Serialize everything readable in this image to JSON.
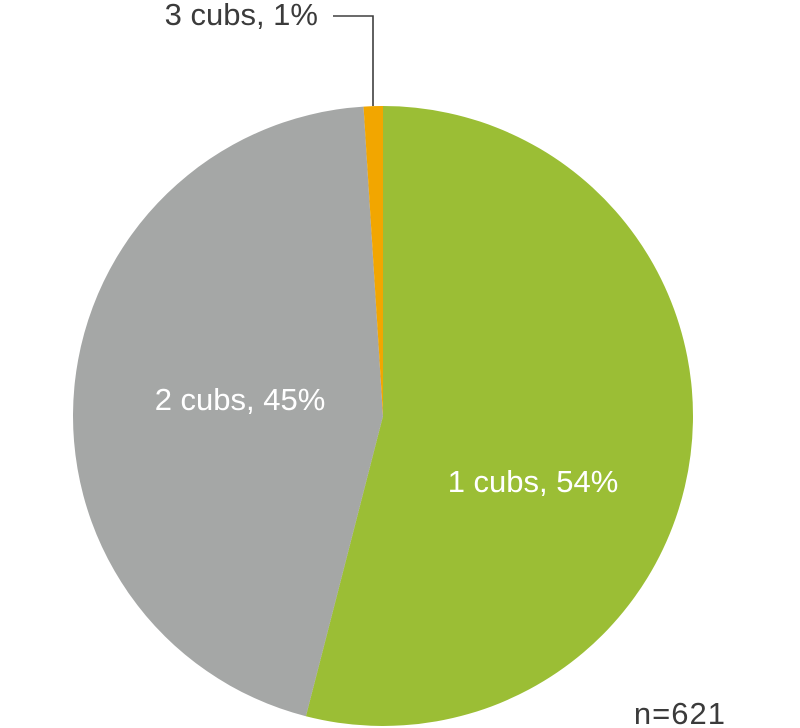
{
  "chart_data": {
    "type": "pie",
    "categories": [
      "1 cubs",
      "2 cubs",
      "3 cubs"
    ],
    "values": [
      54,
      45,
      1
    ],
    "labels": [
      "1 cubs, 54%",
      "2 cubs, 45%",
      "3 cubs, 1%"
    ],
    "colors": [
      "#9bbe35",
      "#a5a7a6",
      "#f2a600"
    ],
    "label_colors": [
      "#ffffff",
      "#ffffff",
      "#3b3b3b"
    ],
    "start_angle_deg": 0,
    "direction": "clockwise",
    "annotation": "n=621"
  }
}
